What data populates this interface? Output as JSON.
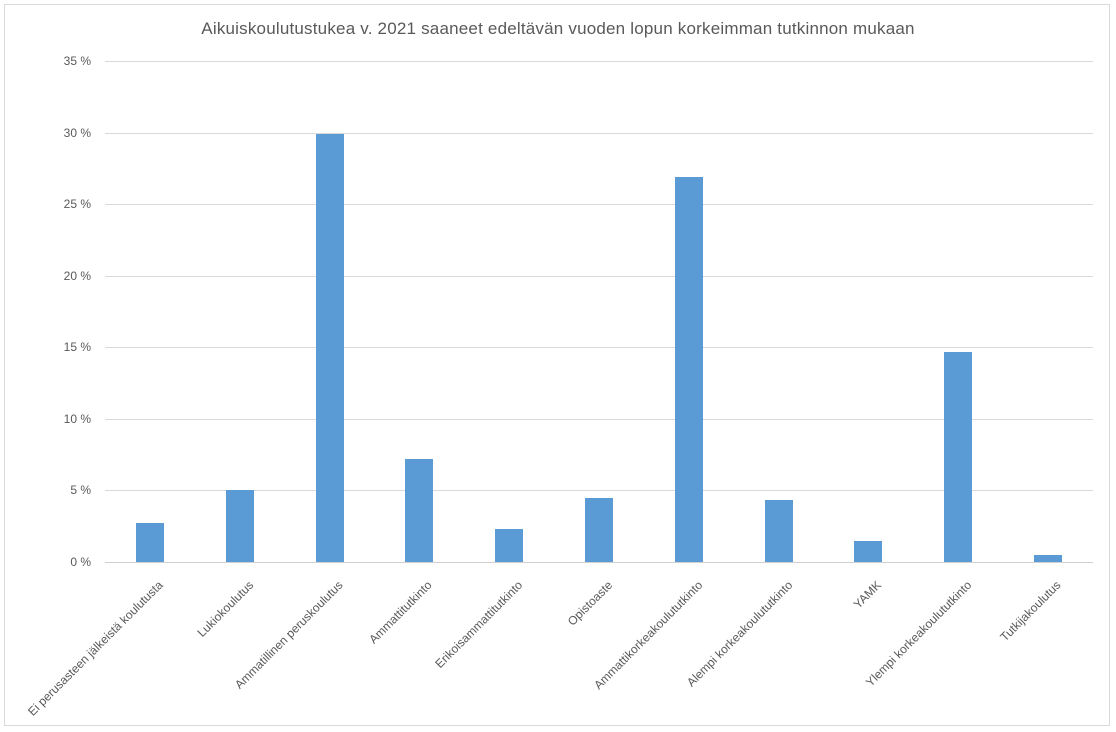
{
  "chart_data": {
    "type": "bar",
    "title": "Aikuiskoulutustukea v. 2021 saaneet edeltävän vuoden lopun korkeimman tutkinnon mukaan",
    "categories": [
      "Ei perusasteen jälkeistä koulutusta",
      "Lukiokoulutus",
      "Ammatillinen peruskoulutus",
      "Ammattitutkinto",
      "Erikoisammattitutkinto",
      "Opistoaste",
      "Ammattikorkeakoulututkinto",
      "Alempi korkeakoulututkinto",
      "YAMK",
      "Ylempi korkeakoulututkinto",
      "Tutkijakoulutus"
    ],
    "values": [
      2.7,
      5.0,
      29.9,
      7.2,
      2.3,
      4.5,
      26.9,
      4.3,
      1.5,
      14.7,
      0.5
    ],
    "unit": "%",
    "xlabel": "",
    "ylabel": "",
    "ylim": [
      0,
      35
    ],
    "ytick_step": 5,
    "ytick_labels": [
      "0 %",
      "5 %",
      "10 %",
      "15 %",
      "20 %",
      "25 %",
      "30 %",
      "35 %"
    ],
    "grid": true,
    "legend": "none"
  },
  "colors": {
    "bar": "#5b9bd5",
    "grid": "#d9d9d9",
    "axis_line": "#d0d0d0",
    "axis_text": "#595959",
    "title_text": "#595959",
    "border": "#d9d9d9"
  }
}
